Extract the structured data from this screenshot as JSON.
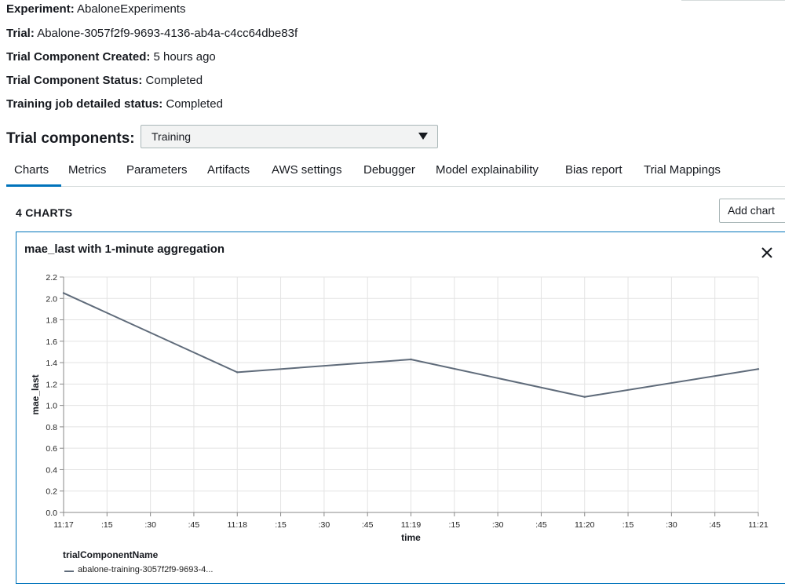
{
  "details": {
    "experiment": {
      "label": "Experiment:",
      "value": "AbaloneExperiments"
    },
    "trial": {
      "label": "Trial:",
      "value": "Abalone-3057f2f9-9693-4136-ab4a-c4cc64dbe83f"
    },
    "created": {
      "label": "Trial Component Created:",
      "value": "5 hours ago"
    },
    "status": {
      "label": "Trial Component Status:",
      "value": "Completed"
    },
    "training_status": {
      "label": "Training job detailed status:",
      "value": "Completed"
    }
  },
  "trial_components": {
    "label": "Trial components:",
    "selected": "Training"
  },
  "tabs": [
    {
      "label": "Charts",
      "active": true
    },
    {
      "label": "Metrics"
    },
    {
      "label": "Parameters"
    },
    {
      "label": "Artifacts"
    },
    {
      "label": "AWS settings"
    },
    {
      "label": "Debugger"
    },
    {
      "label": "Model explainability"
    },
    {
      "label": "Bias report"
    },
    {
      "label": "Trial Mappings"
    }
  ],
  "charts_section": {
    "count_label": "4 CHARTS",
    "add_button": "Add chart"
  },
  "chart_data": {
    "type": "line",
    "title": "mae_last with 1-minute aggregation",
    "xlabel": "time",
    "ylabel": "mae_last",
    "x_ticks": [
      "11:17",
      ":15",
      ":30",
      ":45",
      "11:18",
      ":15",
      ":30",
      ":45",
      "11:19",
      ":15",
      ":30",
      ":45",
      "11:20",
      ":15",
      ":30",
      ":45",
      "11:21"
    ],
    "y_ticks": [
      "0.0",
      "0.2",
      "0.4",
      "0.6",
      "0.8",
      "1.0",
      "1.2",
      "1.4",
      "1.6",
      "1.8",
      "2.0",
      "2.2"
    ],
    "ylim": [
      0,
      2.2
    ],
    "grid": true,
    "legend_title": "trialComponentName",
    "series": [
      {
        "name": "abalone-training-3057f2f9-9693-4...",
        "color": "#5f6b7a",
        "x": [
          "11:17",
          "11:18",
          "11:19",
          "11:20",
          "11:21"
        ],
        "values": [
          2.05,
          1.31,
          1.43,
          1.08,
          1.34
        ]
      }
    ]
  }
}
